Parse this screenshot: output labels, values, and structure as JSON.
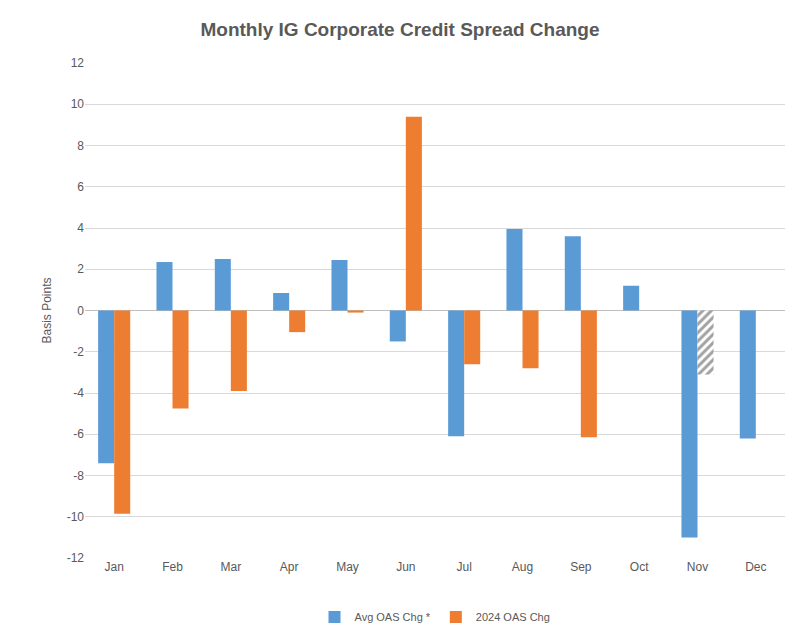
{
  "chart_data": {
    "type": "bar",
    "title": "Monthly IG Corporate Credit Spread Change",
    "y_label": "Basis Points",
    "categories": [
      "Jan",
      "Feb",
      "Mar",
      "Apr",
      "May",
      "Jun",
      "Jul",
      "Aug",
      "Sep",
      "Oct",
      "Nov",
      "Dec"
    ],
    "series": [
      {
        "name": "Avg OAS Chg *",
        "color": "#5b9bd5",
        "values": [
          -7.4,
          2.35,
          2.5,
          0.85,
          2.45,
          -1.5,
          -6.1,
          3.95,
          3.6,
          1.2,
          -11.0,
          -6.2
        ]
      },
      {
        "name": "2024 OAS Chg",
        "color": "#ed7d31",
        "values": [
          -9.85,
          -4.75,
          -3.9,
          -1.05,
          -0.1,
          9.4,
          -2.6,
          -2.8,
          -6.15,
          null,
          -3.1,
          null
        ]
      }
    ],
    "ylim": [
      -12,
      12
    ],
    "yticks": [
      -12,
      -10,
      -8,
      -6,
      -4,
      -2,
      0,
      2,
      4,
      6,
      8,
      10,
      12
    ],
    "grid": true,
    "legend": "bottom"
  }
}
